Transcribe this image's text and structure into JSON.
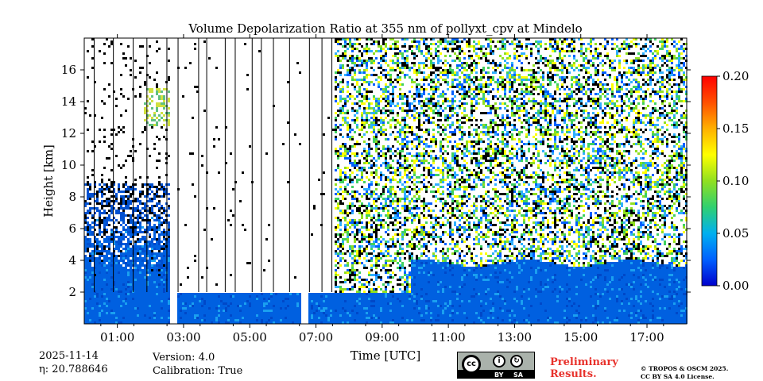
{
  "chart_data": {
    "type": "heatmap",
    "title": "Volume Depolarization Ratio at 355 nm of pollyxt_cpv at Mindelo",
    "xlabel": "Time [UTC]",
    "ylabel": "Height [km]",
    "x_range_hours": [
      0.0,
      18.2
    ],
    "ylim": [
      0,
      18
    ],
    "x_tick_values": [
      1,
      3,
      5,
      7,
      9,
      11,
      13,
      15,
      17
    ],
    "x_tick_labels": [
      "01:00",
      "03:00",
      "05:00",
      "07:00",
      "09:00",
      "11:00",
      "13:00",
      "15:00",
      "17:00"
    ],
    "y_tick_values": [
      2,
      4,
      6,
      8,
      10,
      12,
      14,
      16
    ],
    "y_tick_labels": [
      "2",
      "4",
      "6",
      "8",
      "10",
      "12",
      "14",
      "16"
    ],
    "colorbar": {
      "range": [
        0.0,
        0.2
      ],
      "tick_values": [
        0.0,
        0.05,
        0.1,
        0.15,
        0.2
      ],
      "tick_labels": [
        "0.00",
        "0.05",
        "0.10",
        "0.15",
        "0.20"
      ],
      "colormap": [
        "#0000cc",
        "#0060ff",
        "#00b0f0",
        "#30d070",
        "#90e020",
        "#ffff00",
        "#ffb000",
        "#ff5000",
        "#ff0000"
      ]
    },
    "boundary_layer_top_km": 2.0,
    "data_gaps_hours": [
      [
        2.55,
        2.75
      ],
      [
        6.55,
        6.75
      ]
    ]
  },
  "footer": {
    "date": "2025-11-14",
    "eta": "η: 20.788646",
    "version": "Version: 4.0",
    "calibration": "Calibration: True",
    "license_badge": {
      "cc": "cc",
      "by": "BY",
      "sa": "SA"
    },
    "preliminary_line1": "Preliminary",
    "preliminary_line2": "Results.",
    "copyright_line1": "© TROPOS & OSCM 2025.",
    "copyright_line2": "CC BY SA 4.0 License."
  }
}
